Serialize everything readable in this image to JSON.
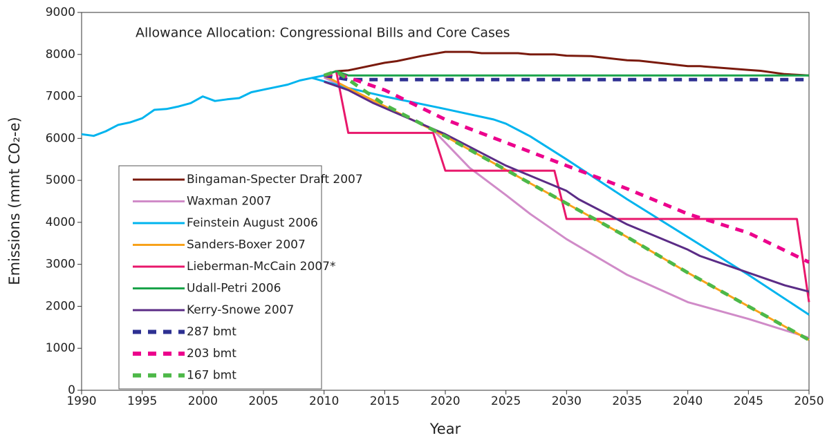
{
  "chart_data": {
    "type": "line",
    "title": "Allowance Allocation: Congressional Bills and Core Cases",
    "x_label": "Year",
    "y_label": "Emissions (mmt CO₂-e)",
    "xlim": [
      1990,
      2050
    ],
    "xticks": [
      1990,
      1995,
      2000,
      2005,
      2010,
      2015,
      2020,
      2025,
      2030,
      2035,
      2040,
      2045,
      2050
    ],
    "ylim": [
      0,
      9000
    ],
    "yticks": [
      0,
      1000,
      2000,
      3000,
      4000,
      5000,
      6000,
      7000,
      8000,
      9000
    ],
    "series": [
      {
        "color": "#00b4ee",
        "x": [
          1990,
          1991,
          1992,
          1993,
          1994,
          1995,
          1996,
          1997,
          1998,
          1999,
          2000,
          2001,
          2002,
          2003,
          2004,
          2005,
          2006,
          2007,
          2008,
          2009,
          2010
        ],
        "values": [
          6100,
          6060,
          6170,
          6320,
          6380,
          6480,
          6680,
          6700,
          6760,
          6840,
          7000,
          6890,
          6930,
          6960,
          7100,
          7160,
          7220,
          7280,
          7380,
          7440,
          7500
        ]
      },
      {
        "name": "Bingaman-Specter Draft 2007",
        "color": "#7a1a0d",
        "x": [
          2010,
          2011,
          2012,
          2015,
          2016,
          2018,
          2020,
          2022,
          2023,
          2026,
          2027,
          2029,
          2030,
          2032,
          2035,
          2036,
          2040,
          2041,
          2045,
          2046,
          2048,
          2050
        ],
        "values": [
          7500,
          7600,
          7620,
          7800,
          7840,
          7960,
          8060,
          8060,
          8030,
          8030,
          8000,
          8000,
          7970,
          7960,
          7860,
          7850,
          7720,
          7720,
          7630,
          7610,
          7530,
          7500
        ]
      },
      {
        "name": "Waxman 2007",
        "color": "#d08bc8",
        "x": [
          2010,
          2019,
          2022,
          2025,
          2027,
          2030,
          2035,
          2040,
          2045,
          2050
        ],
        "values": [
          7450,
          6200,
          5300,
          4650,
          4200,
          3600,
          2750,
          2100,
          1700,
          1250
        ]
      },
      {
        "name": "Feinstein August 2006",
        "color": "#00b4ee",
        "x": [
          2009,
          2012,
          2015,
          2020,
          2024,
          2025,
          2027,
          2030,
          2035,
          2040,
          2045,
          2050
        ],
        "values": [
          7440,
          7200,
          7000,
          6700,
          6450,
          6350,
          6050,
          5500,
          4550,
          3650,
          2750,
          1800
        ]
      },
      {
        "name": "Sanders-Boxer 2007",
        "color": "#f7a21b",
        "x": [
          2010,
          2012,
          2020,
          2025,
          2030,
          2035,
          2040,
          2045,
          2050
        ],
        "values": [
          7500,
          7200,
          6050,
          5250,
          4450,
          3650,
          2800,
          2000,
          1200
        ]
      },
      {
        "name": "Lieberman-McCain 2007*",
        "color": "#e8176b",
        "x": [
          2010,
          2011,
          2012,
          2019,
          2020,
          2029,
          2030,
          2049,
          2050
        ],
        "values": [
          7500,
          7600,
          6130,
          6130,
          5230,
          5230,
          4080,
          4080,
          2100
        ]
      },
      {
        "name": "Udall-Petri 2006",
        "color": "#1aa34a",
        "x": [
          2010,
          2011,
          2012,
          2050
        ],
        "values": [
          7500,
          7600,
          7500,
          7500
        ]
      },
      {
        "name": "Kerry-Snowe 2007",
        "color": "#5b2c86",
        "x": [
          2010,
          2012,
          2014,
          2020,
          2025,
          2030,
          2031,
          2035,
          2040,
          2041,
          2045,
          2048,
          2050
        ],
        "values": [
          7350,
          7150,
          6850,
          6100,
          5350,
          4750,
          4550,
          3950,
          3350,
          3200,
          2800,
          2500,
          2350
        ]
      },
      {
        "name": "287 bmt",
        "color": "#2e3192",
        "dashed": true,
        "x": [
          2010,
          2012,
          2050
        ],
        "values": [
          7500,
          7400,
          7400
        ]
      },
      {
        "name": "203 bmt",
        "color": "#ec008c",
        "dashed": true,
        "x": [
          2010,
          2011,
          2015,
          2020,
          2025,
          2030,
          2035,
          2040,
          2045,
          2050
        ],
        "values": [
          7500,
          7550,
          7150,
          6450,
          5900,
          5350,
          4800,
          4200,
          3750,
          3050
        ]
      },
      {
        "name": "167 bmt",
        "color": "#4db848",
        "dashed": true,
        "x": [
          2010,
          2011,
          2015,
          2020,
          2025,
          2030,
          2035,
          2040,
          2045,
          2050
        ],
        "values": [
          7500,
          7600,
          6800,
          6050,
          5250,
          4450,
          3650,
          2800,
          2000,
          1200
        ]
      }
    ]
  }
}
